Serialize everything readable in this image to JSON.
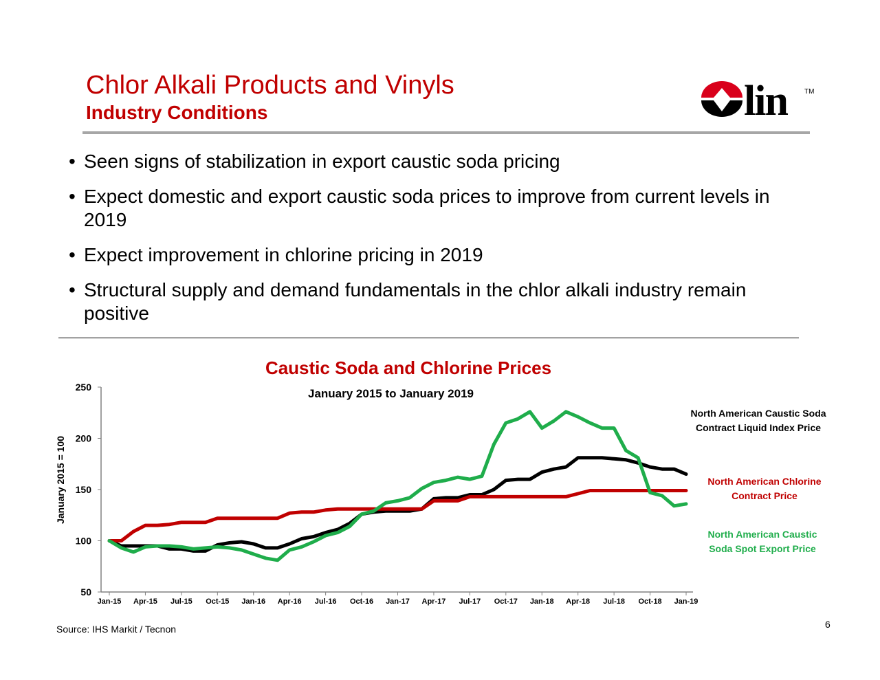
{
  "header": {
    "title": "Chlor Alkali Products and Vinyls",
    "subtitle": "Industry Conditions",
    "logo_text": "Olin",
    "logo_tm": "TM",
    "logo_colors": {
      "red": "#d9001b",
      "black": "#000000"
    }
  },
  "bullets": [
    "Seen signs of stabilization in export caustic soda pricing",
    "Expect domestic and export caustic soda prices to improve from current levels in 2019",
    "Expect improvement in chlorine pricing in 2019",
    "Structural supply and demand fundamentals in the chlor alkali industry remain positive"
  ],
  "chart_data": {
    "type": "line",
    "title": "Caustic Soda and Chlorine Prices",
    "subtitle": "January 2015 to January 2019",
    "ylabel": "January 2015 = 100",
    "xlabel": "",
    "ylim": [
      50,
      250
    ],
    "yticks": [
      50,
      100,
      150,
      200,
      250
    ],
    "grid": false,
    "x_tick_labels": [
      "Jan-15",
      "Apr-15",
      "Jul-15",
      "Oct-15",
      "Jan-16",
      "Apr-16",
      "Jul-16",
      "Oct-16",
      "Jan-17",
      "Apr-17",
      "Jul-17",
      "Oct-17",
      "Jan-18",
      "Apr-18",
      "Jul-18",
      "Oct-18",
      "Jan-19"
    ],
    "x_start": "Jan-15",
    "x_end": "Jan-19",
    "x_frequency": "monthly",
    "series": [
      {
        "name": "North American Caustic Soda Contract Liquid Index Price",
        "label_lines": [
          "North American Caustic Soda",
          "Contract Liquid Index Price"
        ],
        "color": "#000000",
        "values": [
          100,
          95,
          95,
          95,
          95,
          92,
          92,
          90,
          90,
          96,
          98,
          99,
          97,
          93,
          93,
          97,
          102,
          104,
          108,
          111,
          117,
          126,
          128,
          129,
          129,
          129,
          131,
          141,
          142,
          142,
          145,
          145,
          150,
          159,
          160,
          160,
          167,
          170,
          172,
          181,
          181,
          181,
          180,
          179,
          176,
          172,
          170,
          170,
          165
        ]
      },
      {
        "name": "North American Chlorine Contract Price",
        "label_lines": [
          "North American Chlorine",
          "Contract Price"
        ],
        "color": "#c00000",
        "values": [
          100,
          100,
          109,
          115,
          115,
          116,
          118,
          118,
          118,
          122,
          122,
          122,
          122,
          122,
          122,
          127,
          128,
          128,
          130,
          131,
          131,
          131,
          131,
          131,
          131,
          131,
          131,
          139,
          139,
          139,
          143,
          143,
          143,
          143,
          143,
          143,
          143,
          143,
          143,
          146,
          149,
          149,
          149,
          149,
          149,
          149,
          149,
          149,
          149
        ]
      },
      {
        "name": "North American Caustic Soda Spot Export Price",
        "label_lines": [
          "North American  Caustic",
          "Soda Spot Export Price"
        ],
        "color": "#1fad4b",
        "values": [
          100,
          93,
          89,
          94,
          95,
          95,
          94,
          92,
          93,
          94,
          93,
          91,
          87,
          83,
          81,
          91,
          94,
          99,
          105,
          108,
          114,
          126,
          129,
          137,
          139,
          142,
          151,
          157,
          159,
          162,
          160,
          163,
          194,
          215,
          219,
          226,
          210,
          217,
          226,
          221,
          215,
          210,
          210,
          188,
          181,
          147,
          144,
          134,
          136
        ]
      }
    ]
  },
  "footer": {
    "source": "Source: IHS Markit / Tecnon",
    "page_number": "6"
  }
}
